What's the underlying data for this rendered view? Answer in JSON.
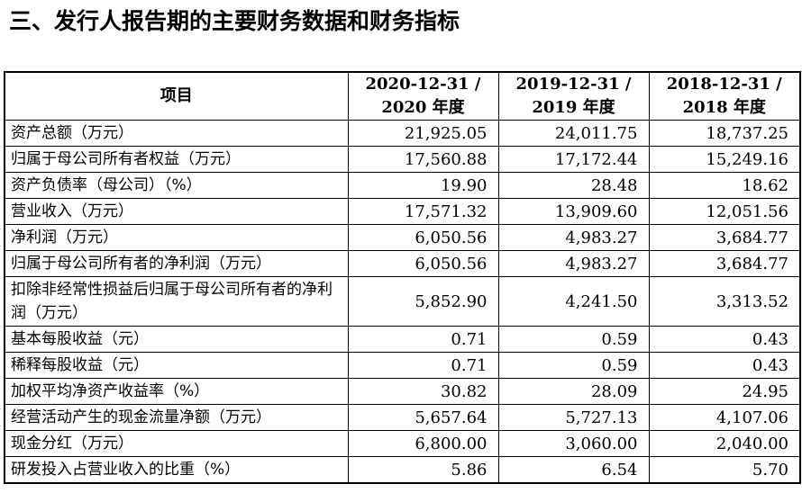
{
  "title": "三、发行人报告期的主要财务数据和财务指标",
  "table": {
    "header": {
      "item": "项目",
      "periods": [
        {
          "line1": "2020-12-31 /",
          "line2": "2020 年度"
        },
        {
          "line1": "2019-12-31 /",
          "line2": "2019 年度"
        },
        {
          "line1": "2018-12-31 /",
          "line2": "2018 年度"
        }
      ]
    },
    "rows": [
      {
        "label": "资产总额（万元）",
        "values": [
          "21,925.05",
          "24,011.75",
          "18,737.25"
        ]
      },
      {
        "label": "归属于母公司所有者权益（万元）",
        "values": [
          "17,560.88",
          "17,172.44",
          "15,249.16"
        ]
      },
      {
        "label": "资产负债率（母公司）（%）",
        "values": [
          "19.90",
          "28.48",
          "18.62"
        ]
      },
      {
        "label": "营业收入（万元）",
        "values": [
          "17,571.32",
          "13,909.60",
          "12,051.56"
        ]
      },
      {
        "label": "净利润（万元）",
        "values": [
          "6,050.56",
          "4,983.27",
          "3,684.77"
        ]
      },
      {
        "label": "归属于母公司所有者的净利润（万元）",
        "values": [
          "6,050.56",
          "4,983.27",
          "3,684.77"
        ]
      },
      {
        "label": "扣除非经常性损益后归属于母公司所有者的净利润（万元）",
        "values": [
          "5,852.90",
          "4,241.50",
          "3,313.52"
        ]
      },
      {
        "label": "基本每股收益（元）",
        "values": [
          "0.71",
          "0.59",
          "0.43"
        ]
      },
      {
        "label": "稀释每股收益（元）",
        "values": [
          "0.71",
          "0.59",
          "0.43"
        ]
      },
      {
        "label": "加权平均净资产收益率（%）",
        "values": [
          "30.82",
          "28.09",
          "24.95"
        ]
      },
      {
        "label": "经营活动产生的现金流量净额（万元）",
        "values": [
          "5,657.64",
          "5,727.13",
          "4,107.06"
        ]
      },
      {
        "label": "现金分红（万元）",
        "values": [
          "6,800.00",
          "3,060.00",
          "2,040.00"
        ]
      },
      {
        "label": "研发投入占营业收入的比重（%）",
        "values": [
          "5.86",
          "6.54",
          "5.70"
        ]
      }
    ]
  }
}
